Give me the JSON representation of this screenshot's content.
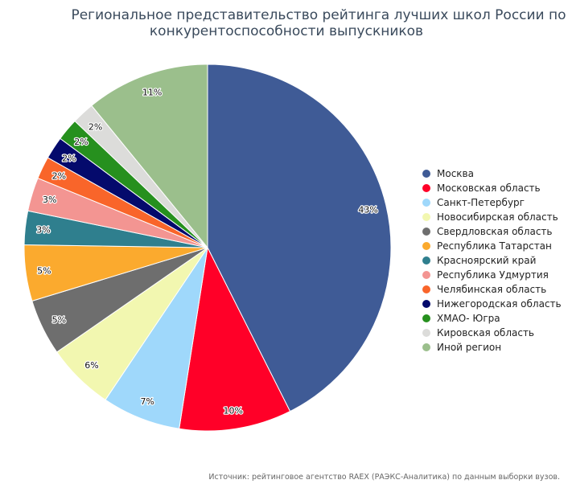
{
  "chart_data": {
    "type": "pie",
    "title_lines": [
      "Региональное представительство рейтинга лучших школ России по",
      "конкурентоспособности выпускников"
    ],
    "legend_position": "right",
    "source": "Источник: рейтинговое агентство RAEX (РАЭКС-Аналитика) по данным выборки вузов.",
    "slices": [
      {
        "name": "Москва",
        "value": 43,
        "label": "43%",
        "color": "#3f5b96"
      },
      {
        "name": "Московская область",
        "value": 10,
        "label": "10%",
        "color": "#ff0028"
      },
      {
        "name": "Санкт-Петербург",
        "value": 7,
        "label": "7%",
        "color": "#9fd8fb"
      },
      {
        "name": "Новосибирская область",
        "value": 6,
        "label": "6%",
        "color": "#f2f7b0"
      },
      {
        "name": "Свердловская область",
        "value": 5,
        "label": "5%",
        "color": "#6e6e6e"
      },
      {
        "name": "Республика Татарстан",
        "value": 5,
        "label": "5%",
        "color": "#fbaa2e"
      },
      {
        "name": "Красноярский край",
        "value": 3,
        "label": "3%",
        "color": "#2f7f8e"
      },
      {
        "name": "Республика Удмуртия",
        "value": 3,
        "label": "3%",
        "color": "#f39592"
      },
      {
        "name": "Челябинская область",
        "value": 2,
        "label": "2%",
        "color": "#f9652a"
      },
      {
        "name": "Нижегородская область",
        "value": 2,
        "label": "2%",
        "color": "#040a6c"
      },
      {
        "name": "ХМАО- Югра",
        "value": 2,
        "label": "2%",
        "color": "#26901e"
      },
      {
        "name": "Кировская область",
        "value": 2,
        "label": "2%",
        "color": "#dcdcda"
      },
      {
        "name": "Иной регион",
        "value": 11,
        "label": "11%",
        "color": "#9bbf8c"
      }
    ]
  }
}
